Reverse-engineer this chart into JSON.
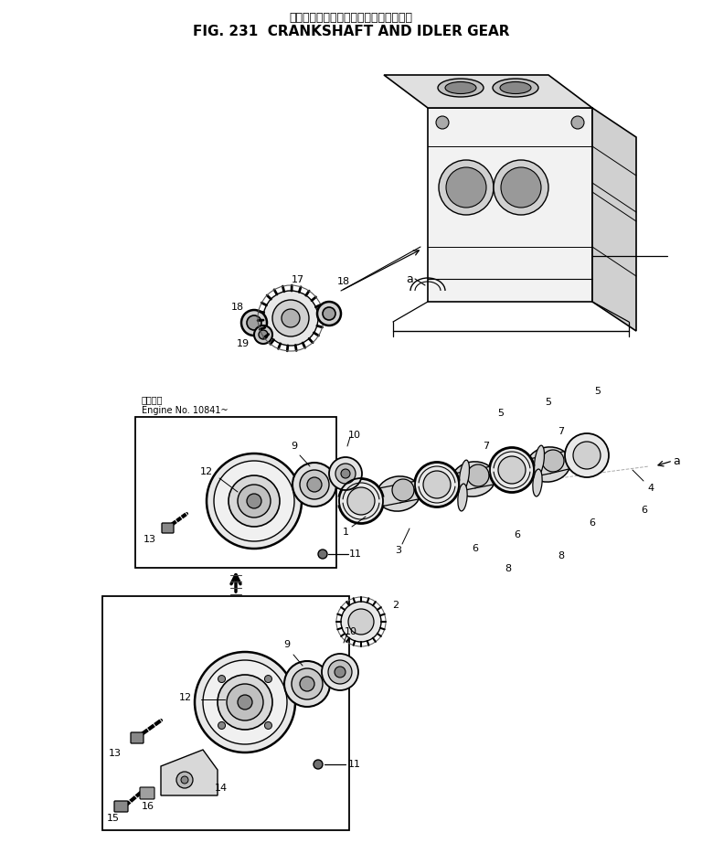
{
  "title_japanese": "クランクシャフトおよびアイドラギヤー",
  "title_english": "FIG. 231  CRANKSHAFT AND IDLER GEAR",
  "title_fontsize": 11,
  "subtitle_fontsize": 9,
  "bg_color": "#ffffff",
  "line_color": "#000000",
  "fig_width": 7.68,
  "fig_height": 9.22,
  "engine_note_japanese": "適用号機",
  "engine_note_english": "Engine No. 10841~"
}
